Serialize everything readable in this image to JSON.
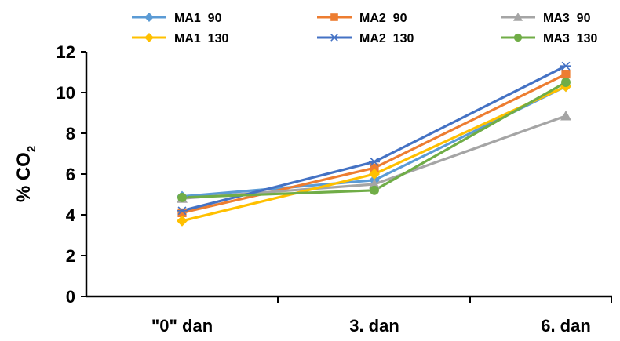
{
  "chart_data": {
    "type": "line",
    "categories": [
      "\"0\" dan",
      "3. dan",
      "6. dan"
    ],
    "ylabel": "% CO2",
    "ylabel_main": "% CO",
    "ylabel_sub": "2",
    "ylim": [
      0,
      12
    ],
    "yticks": [
      0,
      2,
      4,
      6,
      8,
      10,
      12
    ],
    "ytick_labels": [
      "0",
      "2",
      "4",
      "6",
      "8",
      "10",
      "12"
    ],
    "grid": false,
    "legend_position": "top",
    "series": [
      {
        "name": "MA1  90",
        "values": [
          4.9,
          5.7,
          10.3
        ],
        "color": "#5B9BD5",
        "marker": "diamond"
      },
      {
        "name": "MA2  90",
        "values": [
          4.1,
          6.3,
          10.9
        ],
        "color": "#ED7D31",
        "marker": "square"
      },
      {
        "name": "MA3  90",
        "values": [
          4.8,
          5.5,
          8.85
        ],
        "color": "#A5A5A5",
        "marker": "triangle"
      },
      {
        "name": "MA1  130",
        "values": [
          3.7,
          6.0,
          10.3
        ],
        "color": "#FFC000",
        "marker": "diamond"
      },
      {
        "name": "MA2  130",
        "values": [
          4.2,
          6.6,
          11.3
        ],
        "color": "#4472C4",
        "marker": "asterisk"
      },
      {
        "name": "MA3  130",
        "values": [
          4.85,
          5.2,
          10.5
        ],
        "color": "#70AD47",
        "marker": "circle"
      }
    ]
  }
}
